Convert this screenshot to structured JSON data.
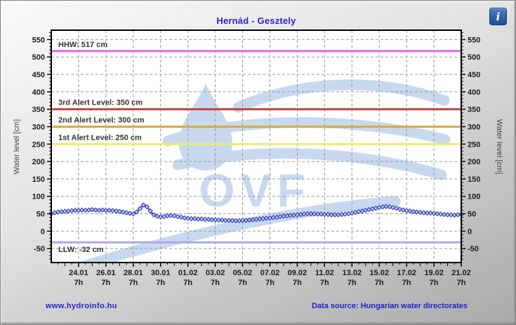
{
  "header": {
    "title": "Hernád - Gesztely",
    "info_glyph": "i"
  },
  "footer": {
    "site_link": "www.hydroinfo.hu",
    "data_source": "Data source: Hungarian water directorates"
  },
  "colors": {
    "title_blue": "#2323cb",
    "plot_bg": "#ffffff",
    "plot_border": "#000000",
    "grid": "#9a9a9a",
    "axis_text": "#1b1b1b",
    "ref_label_text": "#333333",
    "series_line": "#1c1ca8",
    "marker_fill": "#b9cdf0",
    "marker_stroke": "#2a35b0",
    "hhw": "#e966e9",
    "alert3": "#c24444",
    "alert2": "#d9a93f",
    "alert1": "#edec6c",
    "llw": "#abaaec",
    "watermark": "#c8d9ef"
  },
  "chart_data": {
    "type": "line",
    "title": "Hernád - Gesztely",
    "ylabel_left": "Water level [cm]",
    "ylabel_right": "Water level [cm]",
    "ylim": [
      -90,
      577
    ],
    "y_ticks": [
      -50,
      0,
      50,
      100,
      150,
      200,
      250,
      300,
      350,
      400,
      450,
      500,
      550
    ],
    "x_range_days": [
      0,
      30
    ],
    "x_ticks": [
      {
        "day": 2,
        "label": "24.01",
        "sub": "7h"
      },
      {
        "day": 4,
        "label": "26.01",
        "sub": "7h"
      },
      {
        "day": 6,
        "label": "28.01",
        "sub": "7h"
      },
      {
        "day": 8,
        "label": "30.01",
        "sub": "7h"
      },
      {
        "day": 10,
        "label": "01.02",
        "sub": "7h"
      },
      {
        "day": 12,
        "label": "03.02",
        "sub": "7h"
      },
      {
        "day": 14,
        "label": "05.02",
        "sub": "7h"
      },
      {
        "day": 16,
        "label": "07.02",
        "sub": "7h"
      },
      {
        "day": 18,
        "label": "09.02",
        "sub": "7h"
      },
      {
        "day": 20,
        "label": "11.02",
        "sub": "7h"
      },
      {
        "day": 22,
        "label": "13.02",
        "sub": "7h"
      },
      {
        "day": 24,
        "label": "15.02",
        "sub": "7h"
      },
      {
        "day": 26,
        "label": "17.02",
        "sub": "7h"
      },
      {
        "day": 28,
        "label": "19.02",
        "sub": "7h"
      },
      {
        "day": 30,
        "label": "21.02",
        "sub": "7h"
      }
    ],
    "reference_lines": [
      {
        "label": "HHW: 517 cm",
        "value": 517,
        "color": "hhw",
        "label_side": "above"
      },
      {
        "label": "3rd Alert Level: 350 cm",
        "value": 350,
        "color": "alert3",
        "label_side": "above"
      },
      {
        "label": "2nd Alert Level: 300 cm",
        "value": 300,
        "color": "alert2",
        "label_side": "above"
      },
      {
        "label": "1st Alert Level: 250 cm",
        "value": 250,
        "color": "alert1",
        "label_side": "above"
      },
      {
        "label": "LLW: -32 cm",
        "value": -32,
        "color": "llw",
        "label_side": "below"
      }
    ],
    "series": [
      {
        "name": "water-level",
        "start_day": 0,
        "step_days": 0.25,
        "values": [
          50,
          53,
          55,
          56,
          57,
          58,
          59,
          60,
          60,
          61,
          60,
          61,
          62,
          61,
          60,
          61,
          60,
          60,
          59,
          58,
          57,
          55,
          53,
          51,
          50,
          55,
          65,
          75,
          70,
          58,
          47,
          43,
          41,
          42,
          44,
          45,
          44,
          42,
          40,
          38,
          37,
          36,
          36,
          35,
          35,
          34,
          34,
          33,
          33,
          32,
          32,
          31,
          31,
          31,
          30,
          30,
          31,
          31,
          32,
          33,
          34,
          35,
          36,
          37,
          38,
          39,
          40,
          42,
          43,
          44,
          45,
          46,
          47,
          48,
          49,
          50,
          50,
          50,
          49,
          49,
          48,
          48,
          47,
          47,
          47,
          48,
          49,
          50,
          52,
          54,
          56,
          58,
          60,
          62,
          64,
          66,
          68,
          70,
          71,
          70,
          68,
          66,
          63,
          61,
          59,
          58,
          56,
          55,
          54,
          53,
          52,
          52,
          51,
          50,
          49,
          48,
          47,
          47,
          46,
          47,
          48
        ]
      }
    ],
    "watermark_text": "OVF"
  }
}
